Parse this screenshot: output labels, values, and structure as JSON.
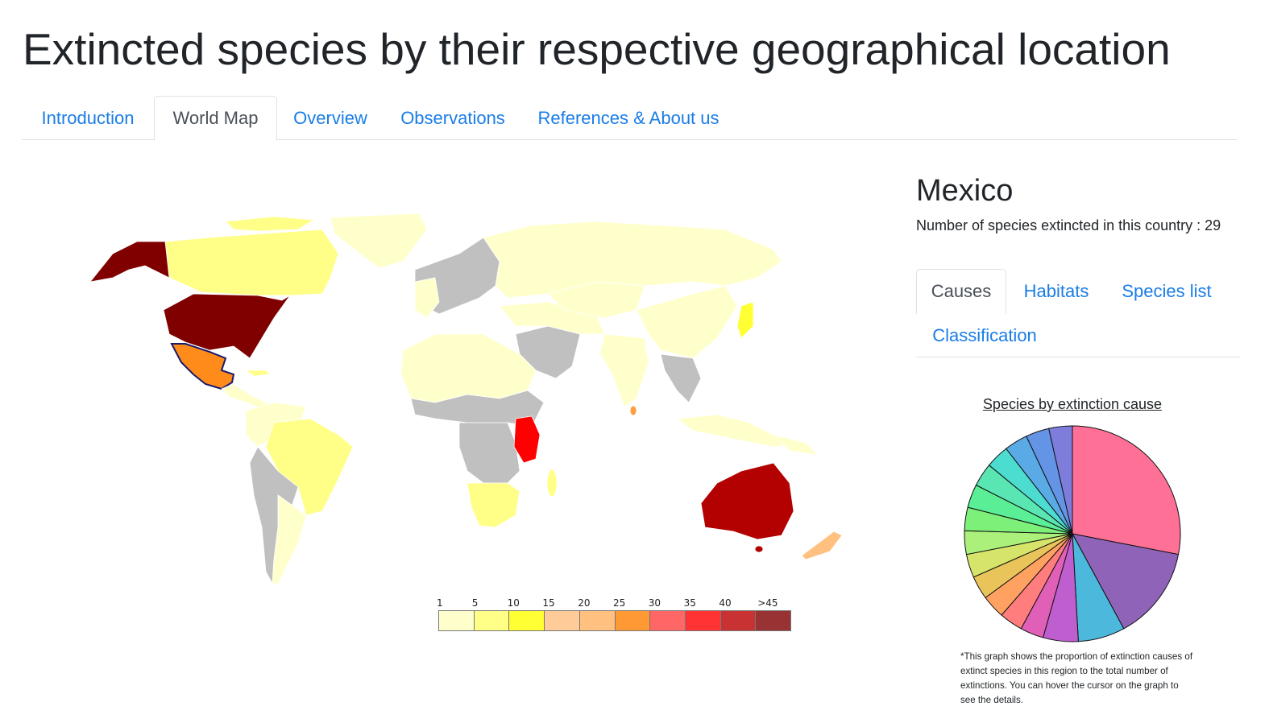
{
  "page": {
    "title": "Extincted species by their respective geographical location"
  },
  "main_tabs": [
    {
      "label": "Introduction",
      "active": false
    },
    {
      "label": "World Map",
      "active": true
    },
    {
      "label": "Overview",
      "active": false
    },
    {
      "label": "Observations",
      "active": false
    },
    {
      "label": "References & About us",
      "active": false
    }
  ],
  "map": {
    "selected_country": "Mexico",
    "legend": {
      "labels": [
        "1",
        "5",
        "10",
        "15",
        "20",
        "25",
        "30",
        "35",
        "40",
        ">45"
      ],
      "colors": [
        "#ffffcc",
        "#ffff88",
        "#ffff33",
        "#ffcc99",
        "#ffc080",
        "#ff9933",
        "#ff6666",
        "#ff3333",
        "#c83232",
        "#993333"
      ]
    },
    "colors": {
      "no_data": "#c0c0c0",
      "very_low": "#ffffcc",
      "low": "#ffff88",
      "japan": "#ffff33",
      "mexico": "#ff8c1a",
      "nz": "#ffc080",
      "srilanka": "#ffa040",
      "east_africa": "#ff0000",
      "australia": "#b30000",
      "usa": "#800000",
      "outline": "#1a1a6e"
    }
  },
  "details": {
    "country": "Mexico",
    "count_text": "Number of species extincted in this country : 29"
  },
  "sub_tabs": [
    {
      "label": "Causes",
      "active": true
    },
    {
      "label": "Habitats",
      "active": false
    },
    {
      "label": "Species list",
      "active": false
    },
    {
      "label": "Classification",
      "active": false
    }
  ],
  "chart_data": {
    "type": "pie",
    "title": "Species by extinction cause",
    "values": [
      8,
      4,
      2,
      1.5,
      1,
      1,
      1,
      1,
      1,
      1,
      1,
      1,
      1,
      1,
      1,
      1,
      1
    ],
    "colors": [
      "#ff7096",
      "#8e63b8",
      "#4cb8dc",
      "#bf5fcf",
      "#e060b8",
      "#ff7d7d",
      "#ffa160",
      "#e8c45a",
      "#d6e46a",
      "#aaf07a",
      "#7df07a",
      "#5aee96",
      "#5ae6b2",
      "#4cdcd0",
      "#5aaae6",
      "#6494e6",
      "#7f7ddc"
    ]
  },
  "note": "*This graph shows the proportion of extinction causes of extinct species in this region to the total number of extinctions. You can hover the cursor on the graph to see the details."
}
